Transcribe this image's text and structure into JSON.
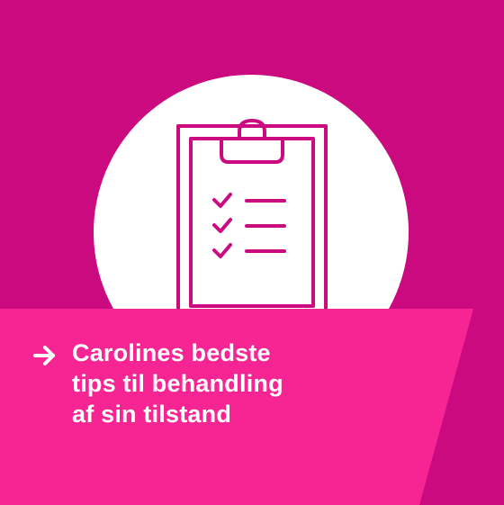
{
  "card": {
    "icon": "clipboard-checklist-icon",
    "caption_lines": [
      "Carolines bedste",
      "tips til behandling",
      "af sin tilstand"
    ],
    "arrow_icon": "arrow-right-icon"
  },
  "colors": {
    "background": "#cc0a7f",
    "banner": "#f72593",
    "circle": "#ffffff",
    "text": "#ffffff"
  }
}
